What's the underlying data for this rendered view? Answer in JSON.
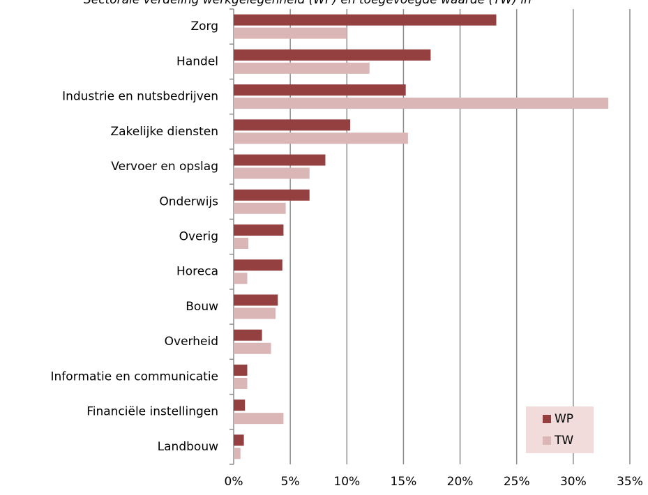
{
  "chart_data": {
    "type": "barh",
    "title": "Sectorale verdeling werkgelegenheid (WP) en toegevoegde waarde (TW) in",
    "categories": [
      "Zorg",
      "Handel",
      "Industrie en nutsbedrijven",
      "Zakelijke diensten",
      "Vervoer en opslag",
      "Onderwijs",
      "Overig",
      "Horeca",
      "Bouw",
      "Overheid",
      "Informatie en communicatie",
      "Financiële instellingen",
      "Landbouw"
    ],
    "series": [
      {
        "name": "WP",
        "color": "#954040",
        "values": [
          23.2,
          17.4,
          15.2,
          10.3,
          8.1,
          6.7,
          4.4,
          4.3,
          3.9,
          2.5,
          1.2,
          1.0,
          0.9
        ]
      },
      {
        "name": "TW",
        "color": "#dbb6b6",
        "values": [
          10.0,
          12.0,
          33.1,
          15.4,
          6.7,
          4.6,
          1.3,
          1.2,
          3.7,
          3.3,
          1.2,
          4.4,
          0.6
        ]
      }
    ],
    "xlim": [
      0,
      35
    ],
    "xticks": [
      {
        "value": 0,
        "label": "0%"
      },
      {
        "value": 5,
        "label": "5%"
      },
      {
        "value": 10,
        "label": "10%"
      },
      {
        "value": 15,
        "label": "15%"
      },
      {
        "value": 20,
        "label": "20%"
      },
      {
        "value": 25,
        "label": "25%"
      },
      {
        "value": 30,
        "label": "30%"
      },
      {
        "value": 35,
        "label": "35%"
      }
    ],
    "grid": true,
    "legend": "lower right"
  }
}
